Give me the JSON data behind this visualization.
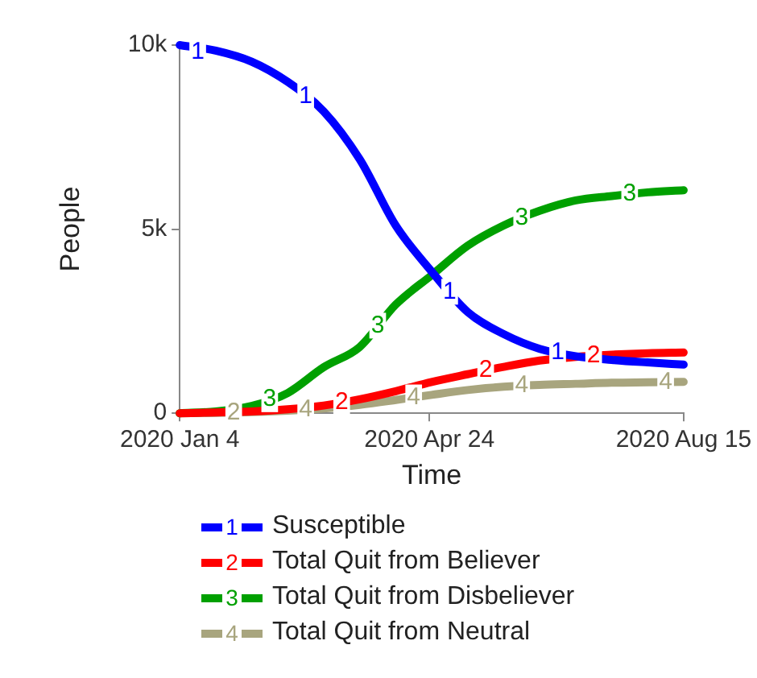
{
  "chart_data": {
    "type": "line",
    "xlabel": "Time",
    "ylabel": "People",
    "x": [
      "2020-01-04",
      "2020-01-20",
      "2020-02-05",
      "2020-02-21",
      "2020-03-08",
      "2020-03-24",
      "2020-04-09",
      "2020-04-25",
      "2020-05-11",
      "2020-05-27",
      "2020-06-12",
      "2020-06-28",
      "2020-07-14",
      "2020-07-30",
      "2020-08-15"
    ],
    "series": [
      {
        "name": "Susceptible",
        "color": "#0000ff",
        "values": [
          10000,
          9850,
          9550,
          9000,
          8200,
          6900,
          5100,
          3850,
          2750,
          2150,
          1750,
          1550,
          1450,
          1380,
          1320
        ]
      },
      {
        "name": "Total Quit from Believer",
        "color": "#ff0000",
        "values": [
          0,
          20,
          50,
          110,
          210,
          380,
          600,
          850,
          1060,
          1260,
          1430,
          1530,
          1590,
          1630,
          1650
        ]
      },
      {
        "name": "Total Quit from Disbeliever",
        "color": "#00a000",
        "values": [
          0,
          50,
          200,
          550,
          1250,
          1800,
          2950,
          3750,
          4550,
          5100,
          5500,
          5780,
          5900,
          6000,
          6060
        ]
      },
      {
        "name": "Total Quit from Neutral",
        "color": "#a8a57e",
        "values": [
          0,
          10,
          30,
          70,
          130,
          230,
          360,
          500,
          630,
          720,
          770,
          800,
          830,
          840,
          850
        ]
      }
    ],
    "xlim": [
      "2020-01-04",
      "2020-08-15"
    ],
    "xticks": [
      {
        "value": "2020-01-04",
        "label": "2020 Jan 4"
      },
      {
        "value": "2020-04-24",
        "label": "2020 Apr 24"
      },
      {
        "value": "2020-08-15",
        "label": "2020 Aug 15"
      }
    ],
    "ylim": [
      0,
      10000
    ],
    "yticks": [
      0,
      {
        "value": 5000,
        "label": "5k"
      },
      {
        "value": 10000,
        "label": "10k"
      }
    ],
    "grid": false,
    "legend": "bottom",
    "marker": "none",
    "line_style": "solid",
    "annotations": [
      {
        "text": "1",
        "x": "2020-01-12",
        "y": 9800
      },
      {
        "text": "1",
        "x": "2020-02-29",
        "y": 8600
      },
      {
        "text": "1",
        "x": "2020-05-03",
        "y": 3300
      },
      {
        "text": "1",
        "x": "2020-06-20",
        "y": 1650
      },
      {
        "text": "2",
        "x": "2020-01-28",
        "y": 0
      },
      {
        "text": "2",
        "x": "2020-03-16",
        "y": 300
      },
      {
        "text": "2",
        "x": "2020-05-19",
        "y": 1160
      },
      {
        "text": "2",
        "x": "2020-07-06",
        "y": 1560
      },
      {
        "text": "3",
        "x": "2020-02-13",
        "y": 380
      },
      {
        "text": "3",
        "x": "2020-04-01",
        "y": 2380
      },
      {
        "text": "3",
        "x": "2020-06-04",
        "y": 5300
      },
      {
        "text": "3",
        "x": "2020-07-22",
        "y": 5950
      },
      {
        "text": "4",
        "x": "2020-02-29",
        "y": 100
      },
      {
        "text": "4",
        "x": "2020-04-17",
        "y": 430
      },
      {
        "text": "4",
        "x": "2020-06-04",
        "y": 750
      },
      {
        "text": "4",
        "x": "2020-08-07",
        "y": 850
      }
    ]
  }
}
